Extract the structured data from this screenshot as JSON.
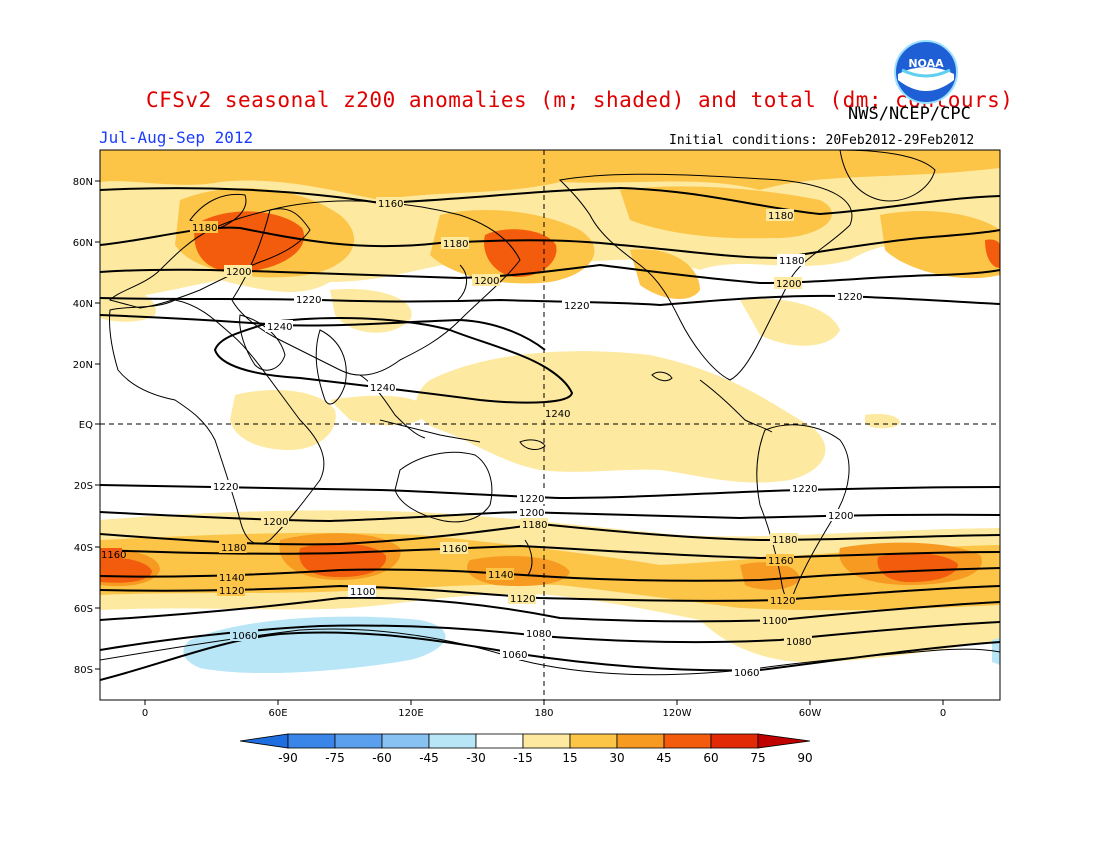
{
  "title": "CFSv2 seasonal z200 anomalies (m; shaded) and total (dm; contours)",
  "period": "Jul-Aug-Sep 2012",
  "credit": "NWS/NCEP/CPC",
  "initial_conditions": "Initial conditions: 20Feb2012-29Feb2012",
  "logo_text": "NOAA",
  "lat_labels": [
    "80N",
    "60N",
    "40N",
    "20N",
    "EQ",
    "20S",
    "40S",
    "60S",
    "80S"
  ],
  "lon_labels": [
    "0",
    "60E",
    "120E",
    "180",
    "120W",
    "60W",
    "0"
  ],
  "contour_labels": [
    "1160",
    "1180",
    "1180",
    "1180",
    "1180",
    "1200",
    "1200",
    "1200",
    "1220",
    "1220",
    "1220",
    "1240",
    "1240",
    "1240",
    "1220",
    "1220",
    "1220",
    "1200",
    "1200",
    "1200",
    "1180",
    "1180",
    "1180",
    "1160",
    "1160",
    "1160",
    "1140",
    "1140",
    "1120",
    "1120",
    "1120",
    "1100",
    "1100",
    "1080",
    "1080",
    "1060",
    "1060",
    "1060",
    "1160"
  ],
  "colorbar": {
    "ticks": [
      "-90",
      "-75",
      "-60",
      "-45",
      "-30",
      "-15",
      "15",
      "30",
      "45",
      "60",
      "75",
      "90"
    ],
    "colors": [
      "#1e6ee0",
      "#3a86e8",
      "#5aa0ee",
      "#88c2f2",
      "#b8e6f6",
      "#ffffff",
      "#fde9a0",
      "#fcc548",
      "#f79a22",
      "#f25c0c",
      "#e22a06",
      "#c00000"
    ]
  },
  "colors": {
    "title": "#e00000",
    "period": "#1a3cff",
    "light_orange": "#fde9a0",
    "orange": "#fcc548",
    "dark_orange": "#f79a22",
    "red_orange": "#f25c0c",
    "light_blue": "#b8e6f6"
  }
}
